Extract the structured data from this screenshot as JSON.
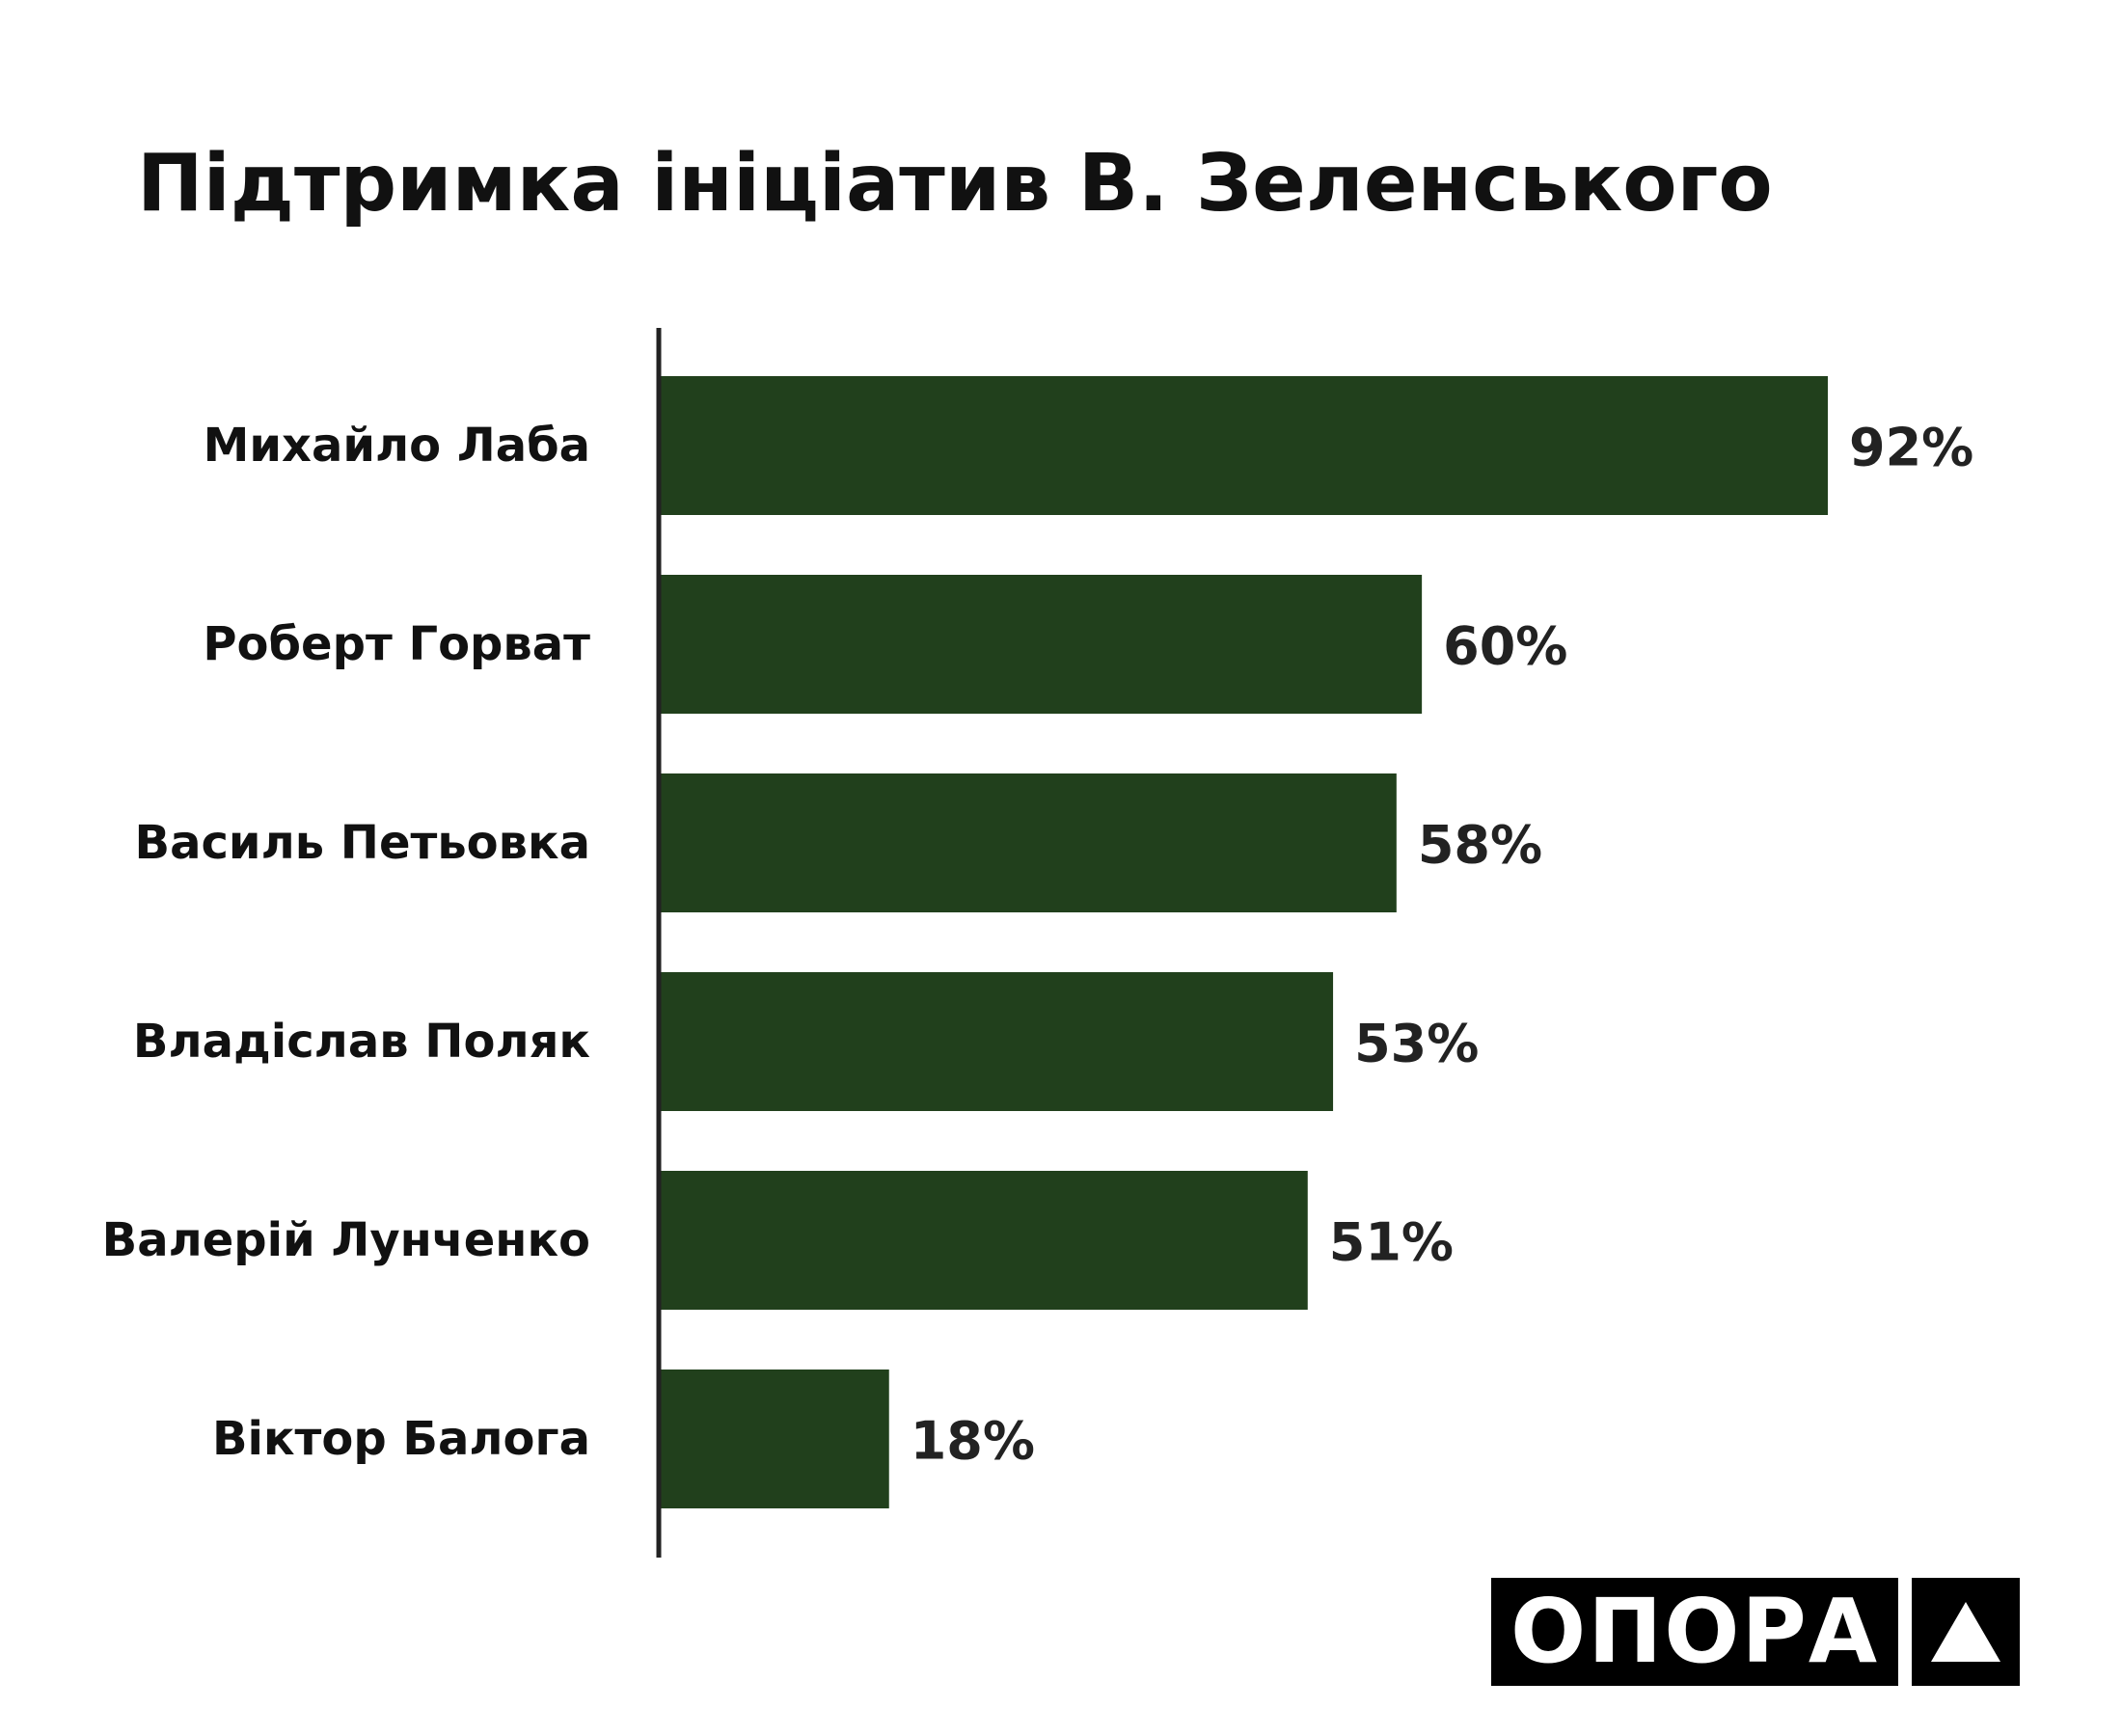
{
  "chart_data": {
    "type": "bar",
    "orientation": "horizontal",
    "title": "Підтримка ініціатив В. Зеленського",
    "categories": [
      "Михайло Лаба",
      "Роберт Горват",
      "Василь Петьовка",
      "Владіслав Поляк",
      "Валерій Лунченко",
      "Віктор Балога"
    ],
    "values": [
      92,
      60,
      58,
      53,
      51,
      18
    ],
    "value_labels": [
      "92%",
      "60%",
      "58%",
      "53%",
      "51%",
      "18%"
    ],
    "xlim": [
      0,
      100
    ],
    "grid": false,
    "bar_color": "#21401c",
    "axis_color": "#222222"
  },
  "logo": {
    "text": "ОПОРА",
    "mark": "triangle-icon"
  }
}
